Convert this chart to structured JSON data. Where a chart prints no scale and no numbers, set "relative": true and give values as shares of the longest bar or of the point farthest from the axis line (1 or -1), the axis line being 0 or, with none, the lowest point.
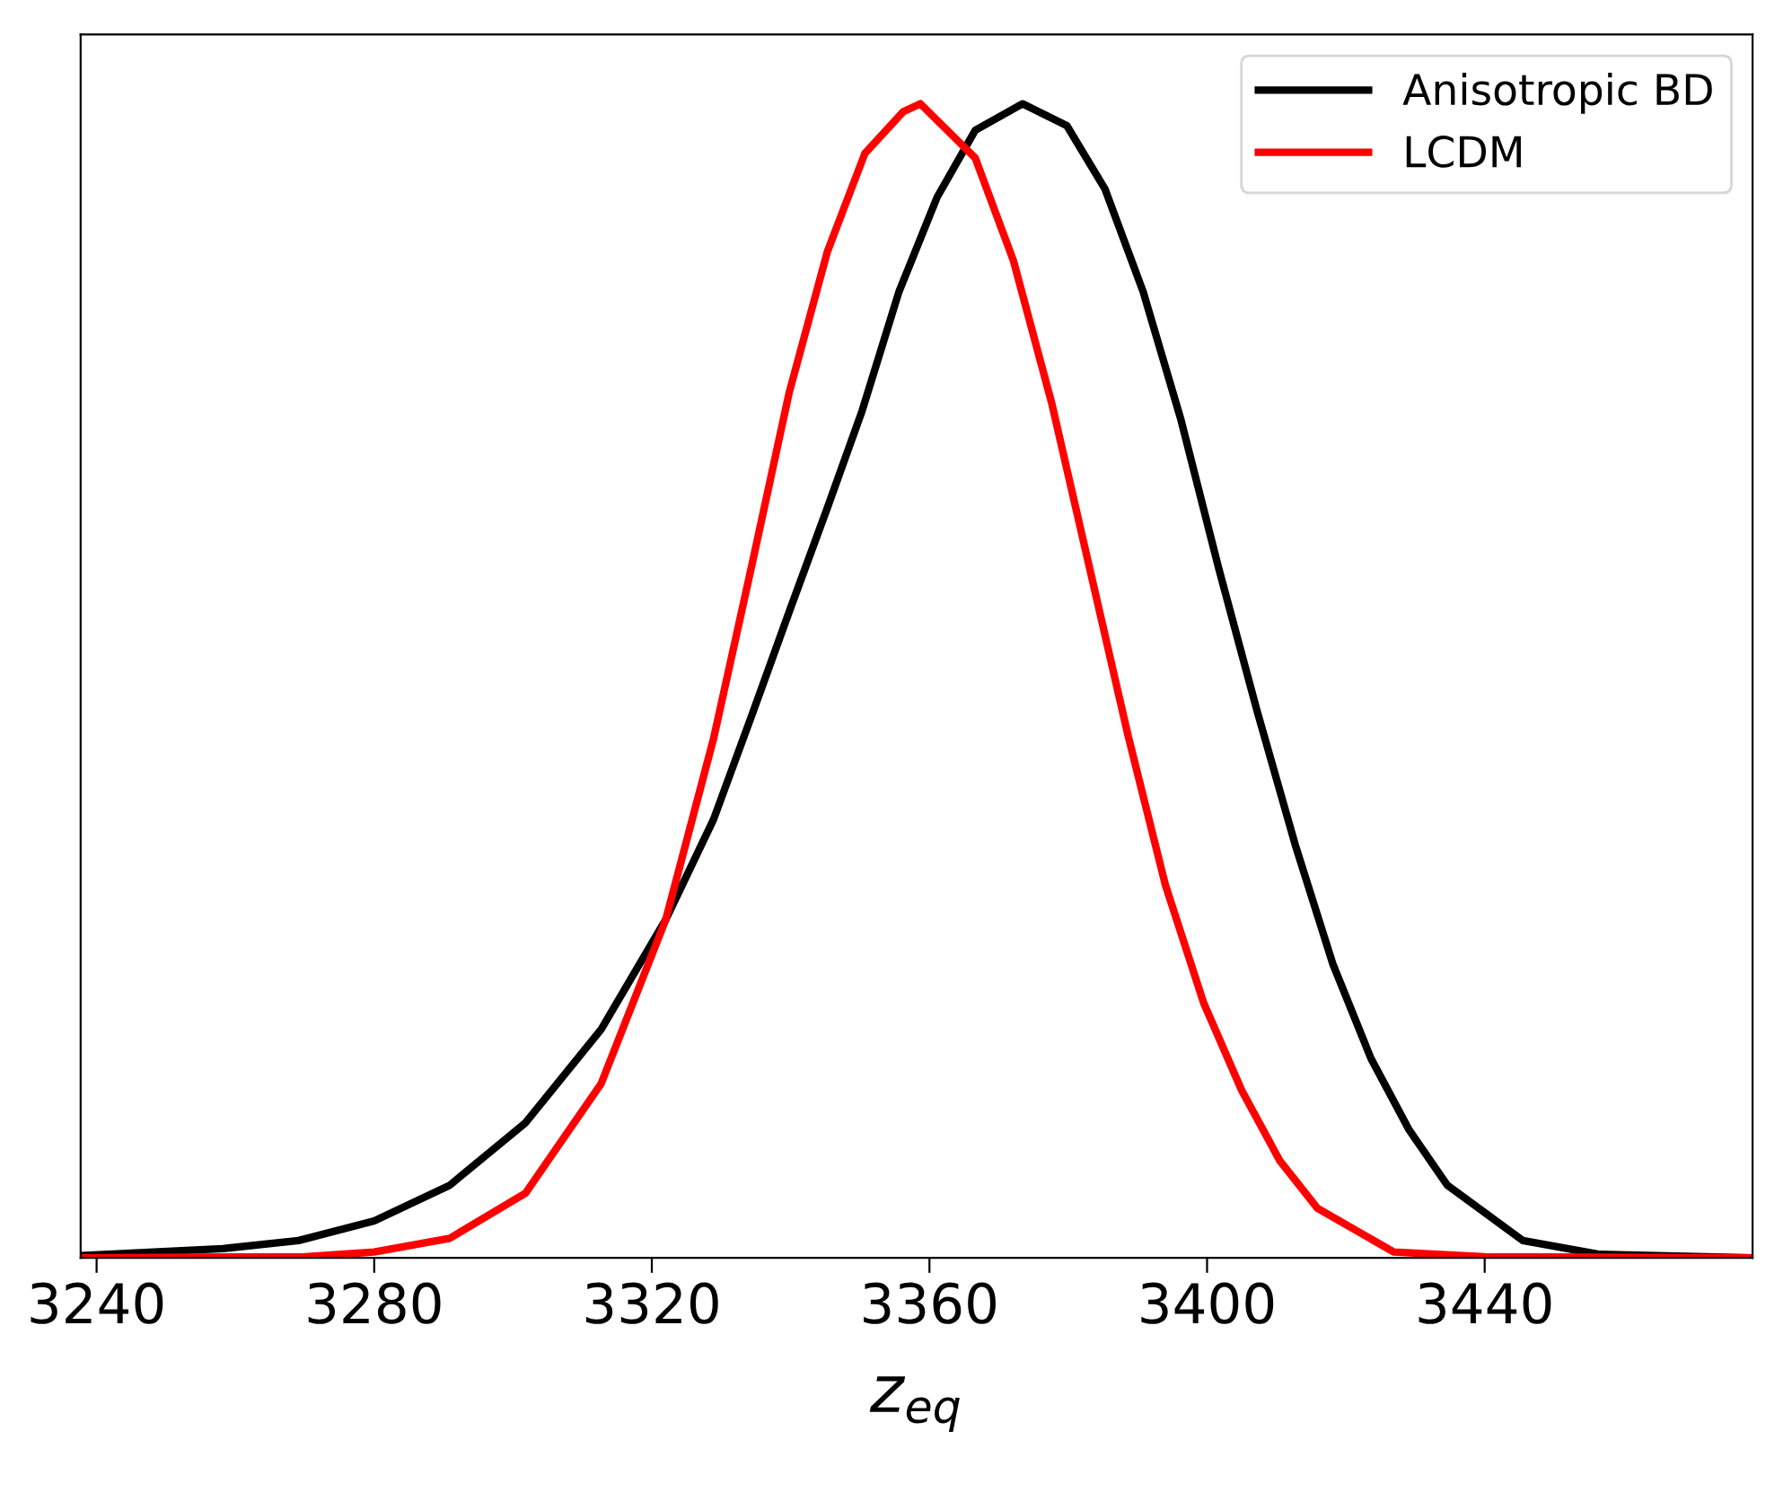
{
  "chart_data": {
    "type": "line",
    "xlabel": "z$_{eq}$",
    "relative": true,
    "tick_labels": "x",
    "legend": "top right",
    "grid": false,
    "xlim": [
      3237.7,
      3478.6
    ],
    "xticks": [
      3240,
      3280,
      3320,
      3360,
      3400,
      3440
    ],
    "series": [
      {
        "name": "Anisotropic BD",
        "color": "#000000",
        "x": [
          3237.7,
          3258.2,
          3269.1,
          3280,
          3290.9,
          3301.8,
          3312.7,
          3322,
          3328.9,
          3334.4,
          3339.8,
          3345.3,
          3350.3,
          3355.6,
          3361.1,
          3366.6,
          3373.4,
          3379.8,
          3385.3,
          3390.8,
          3396.2,
          3401.7,
          3407.2,
          3412.7,
          3418.1,
          3423.6,
          3429.1,
          3434.6,
          3445.5,
          3456.5,
          3478.6
        ],
        "values": [
          0.002,
          0.008,
          0.015,
          0.032,
          0.063,
          0.117,
          0.198,
          0.293,
          0.38,
          0.47,
          0.56,
          0.65,
          0.734,
          0.837,
          0.919,
          0.977,
          1.0,
          0.981,
          0.926,
          0.837,
          0.727,
          0.597,
          0.474,
          0.358,
          0.255,
          0.173,
          0.111,
          0.063,
          0.015,
          0.003,
          0.0
        ]
      },
      {
        "name": "LCDM",
        "color": "#ff0000",
        "x": [
          3237.7,
          3270,
          3280,
          3290.9,
          3301.8,
          3312.7,
          3322,
          3328.9,
          3334.4,
          3339.8,
          3345.3,
          3350.7,
          3356.2,
          3358.7,
          3366.6,
          3372.1,
          3377.6,
          3383.1,
          3388.6,
          3394.0,
          3399.5,
          3405.0,
          3410.5,
          3415.9,
          3426.9,
          3440,
          3478.6
        ],
        "values": [
          0.0,
          0.001,
          0.005,
          0.017,
          0.056,
          0.151,
          0.293,
          0.45,
          0.6,
          0.75,
          0.872,
          0.957,
          0.993,
          1.0,
          0.953,
          0.864,
          0.741,
          0.597,
          0.453,
          0.323,
          0.221,
          0.145,
          0.084,
          0.043,
          0.005,
          0.001,
          0.0
        ]
      }
    ]
  }
}
